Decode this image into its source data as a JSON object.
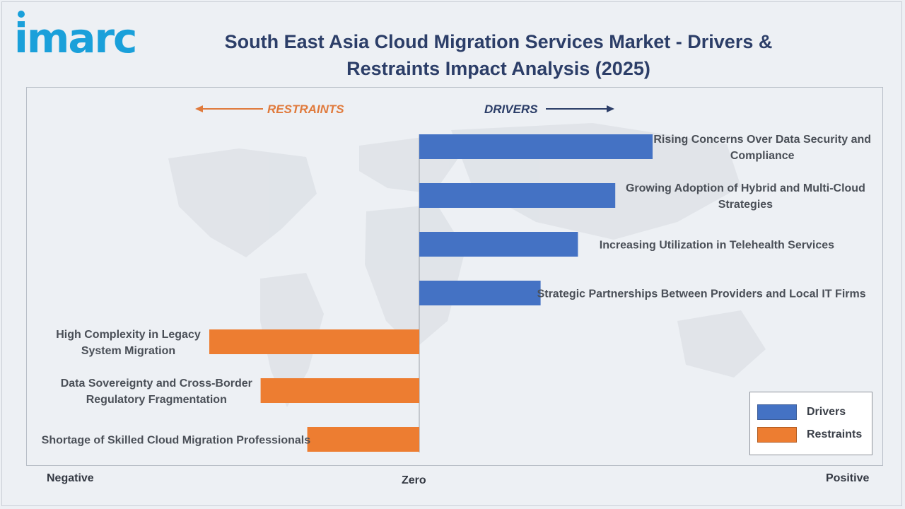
{
  "brand": {
    "logo_text": "imarc",
    "color": "#1aa0da"
  },
  "header": {
    "title_line1": "South East Asia Cloud Migration Services Market - Drivers &",
    "title_line2": "Restraints Impact Analysis (2025)"
  },
  "colors": {
    "drivers": "#4472c4",
    "restraints": "#ed7d31",
    "direction_drivers": "#2c3e68",
    "direction_restraints": "#e07a3c"
  },
  "direction": {
    "restraints": "RESTRAINTS",
    "drivers": "DRIVERS"
  },
  "axis": {
    "negative": "Negative",
    "zero": "Zero",
    "positive": "Positive"
  },
  "legend": {
    "drivers": "Drivers",
    "restraints": "Restraints"
  },
  "chart_data": {
    "type": "bar",
    "orientation": "horizontal",
    "value_scale": "relative impact (no numeric axis); approx. fraction of side half-width",
    "xlim": [
      -1,
      1
    ],
    "grid": false,
    "legend_position": "bottom-right",
    "series": [
      {
        "name": "Drivers",
        "color": "#4472c4"
      },
      {
        "name": "Restraints",
        "color": "#ed7d31"
      }
    ],
    "bars": [
      {
        "label_lines": [
          "Rising Concerns Over Data Security and",
          "Compliance"
        ],
        "value": 0.5,
        "series": "Drivers"
      },
      {
        "label_lines": [
          "Growing Adoption of Hybrid and Multi-Cloud",
          "Strategies"
        ],
        "value": 0.42,
        "series": "Drivers"
      },
      {
        "label_lines": [
          "Increasing Utilization in Telehealth Services"
        ],
        "value": 0.34,
        "series": "Drivers"
      },
      {
        "label_lines": [
          "Strategic Partnerships Between Providers and Local IT Firms"
        ],
        "value": 0.26,
        "series": "Drivers"
      },
      {
        "label_lines": [
          "High Complexity in Legacy",
          "System Migration"
        ],
        "value": -0.45,
        "series": "Restraints"
      },
      {
        "label_lines": [
          "Data Sovereignty and Cross-Border",
          "Regulatory Fragmentation"
        ],
        "value": -0.34,
        "series": "Restraints"
      },
      {
        "label_lines": [
          "Shortage of Skilled Cloud Migration Professionals"
        ],
        "value": -0.24,
        "series": "Restraints"
      }
    ]
  }
}
